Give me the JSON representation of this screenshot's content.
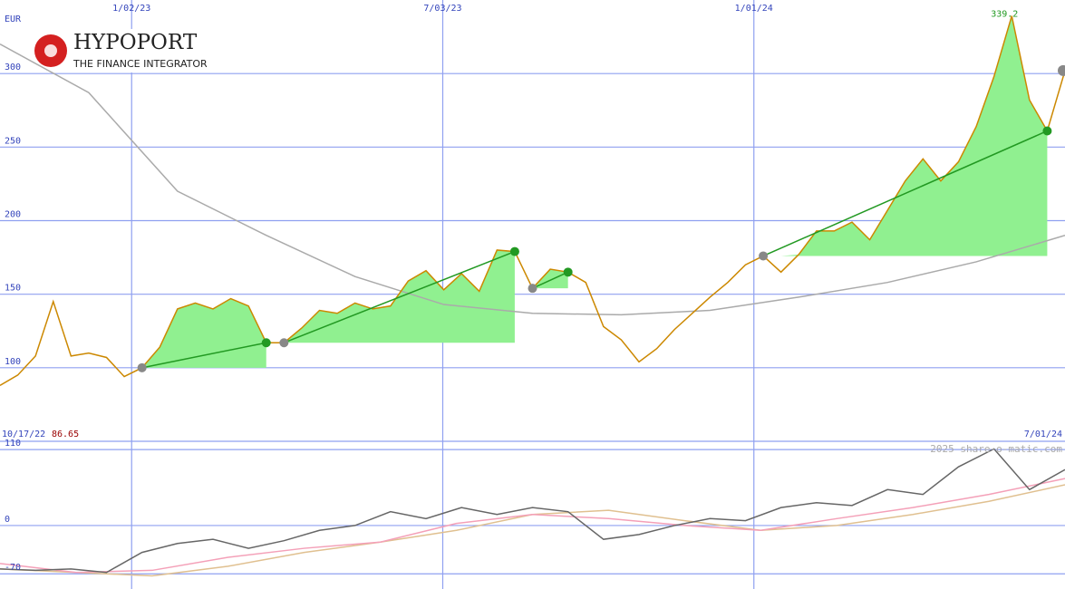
{
  "logo": {
    "name": "HYPOPORT",
    "tagline": "THE FINANCE INTEGRATOR"
  },
  "watermark": "2025 share-o-matic.com",
  "chart_data": [
    {
      "type": "line",
      "ylabel": "EUR",
      "xlim": [
        {
          "value": "2022-10-17",
          "label": "10/17/22"
        },
        {
          "value": "2024-07-01",
          "label": "7/01/24"
        }
      ],
      "xticks": [
        {
          "value": "2023-01-02",
          "label": "1/02/23"
        },
        {
          "value": "2023-07-03",
          "label": "7/03/23"
        },
        {
          "value": "2024-01-01",
          "label": "1/01/24"
        }
      ],
      "ylim": [
        50,
        350
      ],
      "yticks": [
        100,
        150,
        200,
        250,
        300
      ],
      "grid": true,
      "start_price": 86.65,
      "max_label": "339.2",
      "series": [
        {
          "color": "#cc8800",
          "values": [
            88,
            95,
            108,
            145,
            108,
            110,
            107,
            94,
            100,
            114,
            140,
            144,
            140,
            147,
            142,
            117,
            117,
            127,
            139,
            137,
            144,
            140,
            142,
            159,
            166,
            153,
            164,
            152,
            180,
            179,
            154,
            167,
            165,
            158,
            128,
            119,
            104,
            113,
            126,
            137,
            148,
            158,
            170,
            176,
            165,
            177,
            193,
            193,
            199,
            187,
            207,
            227,
            242,
            227,
            240,
            264,
            298,
            339.2,
            282,
            261,
            302
          ]
        },
        {
          "color": "#aaaaaa",
          "values": [
            320,
            287,
            220,
            190,
            162,
            143,
            137,
            136,
            139,
            148,
            158,
            172,
            190
          ]
        }
      ],
      "trends": [
        {
          "from": 8,
          "to": 15,
          "color": "#90f090"
        },
        {
          "from": 16,
          "to": 29,
          "color": "#90f090"
        },
        {
          "from": 30,
          "to": 32,
          "color": "#90f090"
        },
        {
          "from": 43,
          "to": 59,
          "color": "#90f090"
        }
      ]
    },
    {
      "type": "line",
      "ylim": [
        -92,
        122
      ],
      "yticks": [
        -70,
        0,
        110
      ],
      "grid": true,
      "series": [
        {
          "color": "#666666",
          "values": [
            -63,
            -65,
            -63,
            -68,
            -39,
            -26,
            -20,
            -33,
            -22,
            -7,
            0,
            20,
            10,
            26,
            16,
            26,
            20,
            -20,
            -13,
            0,
            10,
            7,
            26,
            33,
            29,
            52,
            45,
            85,
            111,
            52,
            81
          ]
        },
        {
          "color": "#f4a0b8",
          "values": [
            -55,
            -68,
            -65,
            -46,
            -33,
            -24,
            3,
            16,
            10,
            0,
            -7,
            10,
            26,
            45,
            68
          ]
        },
        {
          "color": "#e0c090",
          "values": [
            -63,
            -68,
            -73,
            -59,
            -39,
            -24,
            -7,
            16,
            22,
            7,
            -7,
            0,
            16,
            35,
            59
          ]
        }
      ]
    }
  ]
}
